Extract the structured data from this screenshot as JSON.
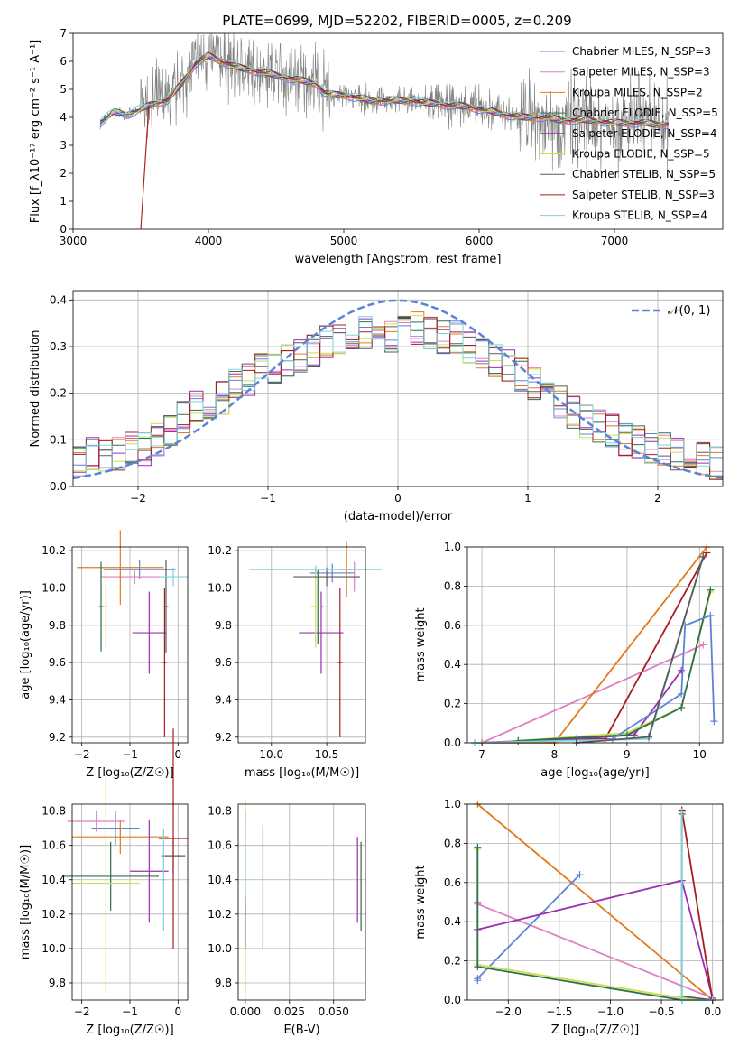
{
  "figure_title": "PLATE=0699, MJD=52202, FIBERID=0005, z=0.209",
  "colors": {
    "Chabrier MILES": "#5b84d8",
    "Salpeter MILES": "#e07fc2",
    "Kroupa MILES": "#e07b1d",
    "Chabrier ELODIE": "#2f6e4e",
    "Salpeter ELODIE": "#9b2db0",
    "Kroupa ELODIE": "#c9e04a",
    "Chabrier STELIB": "#5a5a5a",
    "Salpeter STELIB": "#a51d22",
    "Kroupa STELIB": "#7dd3da",
    "data": "#808080",
    "normal": "#5b84d8"
  },
  "chart_data": [
    {
      "id": "spectrum",
      "type": "line",
      "title": "PLATE=0699, MJD=52202, FIBERID=0005, z=0.209",
      "xlabel": "wavelength [Angstrom, rest frame]",
      "ylabel": "Flux [f_λ10⁻¹⁷ erg cm⁻² s⁻¹ A⁻¹]",
      "xlim": [
        3000,
        7800
      ],
      "ylim": [
        0,
        7
      ],
      "xticks": [
        "3000",
        "4000",
        "5000",
        "6000",
        "7000"
      ],
      "yticks": [
        "0",
        "1",
        "2",
        "3",
        "4",
        "5",
        "6",
        "7"
      ],
      "legend": "top-right",
      "series": [
        {
          "name": "Chabrier MILES, N_SSP=3"
        },
        {
          "name": "Salpeter MILES, N_SSP=3"
        },
        {
          "name": "Kroupa MILES, N_SSP=2"
        },
        {
          "name": "Chabrier ELODIE, N_SSP=5"
        },
        {
          "name": "Salpeter ELODIE, N_SSP=4"
        },
        {
          "name": "Kroupa ELODIE, N_SSP=5"
        },
        {
          "name": "Chabrier STELIB, N_SSP=5"
        },
        {
          "name": "Salpeter STELIB, N_SSP=3"
        },
        {
          "name": "Kroupa STELIB, N_SSP=4"
        }
      ],
      "model_x": [
        3200,
        3300,
        3400,
        3500,
        3600,
        3700,
        3800,
        3900,
        4000,
        4100,
        4200,
        4300,
        4400,
        4500,
        4600,
        4700,
        4800,
        4850,
        4900,
        5000,
        5100,
        5200,
        5300,
        5400,
        5500,
        5600,
        5700,
        5800,
        5900,
        6000,
        6100,
        6200,
        6300,
        6400,
        6500,
        6600,
        6700,
        6800,
        6900,
        7000,
        7100,
        7200,
        7300,
        7400
      ],
      "model_y": [
        3.8,
        4.2,
        4.1,
        4.3,
        4.5,
        4.6,
        5.2,
        5.9,
        6.2,
        6.0,
        5.8,
        5.7,
        5.6,
        5.5,
        5.4,
        5.3,
        5.2,
        4.9,
        4.8,
        4.8,
        4.7,
        4.6,
        4.6,
        4.6,
        4.6,
        4.5,
        4.5,
        4.4,
        4.4,
        4.3,
        4.2,
        4.1,
        4.0,
        4.0,
        4.0,
        3.9,
        3.9,
        3.9,
        3.85,
        3.8,
        3.8,
        3.8,
        3.75,
        3.75
      ],
      "data_range": [
        3200,
        7400
      ]
    },
    {
      "id": "residuals",
      "type": "bar",
      "xlabel": "(data-model)/error",
      "ylabel": "Normed distribution",
      "xlim": [
        -2.5,
        2.5
      ],
      "ylim": [
        0,
        0.42
      ],
      "xticks": [
        "−2",
        "−1",
        "0",
        "1",
        "2"
      ],
      "yticks": [
        "0.0",
        "0.1",
        "0.2",
        "0.3",
        "0.4"
      ],
      "legend": "top-right",
      "legend_label": "𝒩(0, 1)",
      "bin_centers": [
        -2.45,
        -2.35,
        -2.25,
        -2.15,
        -2.05,
        -1.95,
        -1.85,
        -1.75,
        -1.65,
        -1.55,
        -1.45,
        -1.35,
        -1.25,
        -1.15,
        -1.05,
        -0.95,
        -0.85,
        -0.75,
        -0.65,
        -0.55,
        -0.45,
        -0.35,
        -0.25,
        -0.15,
        -0.05,
        0.05,
        0.15,
        0.25,
        0.35,
        0.45,
        0.55,
        0.65,
        0.75,
        0.85,
        0.95,
        1.05,
        1.15,
        1.25,
        1.35,
        1.45,
        1.55,
        1.65,
        1.75,
        1.85,
        1.95,
        2.05,
        2.15,
        2.25,
        2.35,
        2.45
      ],
      "hist_values": [
        0.055,
        0.07,
        0.065,
        0.07,
        0.085,
        0.08,
        0.1,
        0.12,
        0.15,
        0.17,
        0.18,
        0.19,
        0.22,
        0.23,
        0.25,
        0.25,
        0.27,
        0.28,
        0.29,
        0.31,
        0.32,
        0.33,
        0.33,
        0.33,
        0.32,
        0.33,
        0.34,
        0.33,
        0.32,
        0.32,
        0.3,
        0.28,
        0.27,
        0.26,
        0.24,
        0.22,
        0.2,
        0.18,
        0.16,
        0.14,
        0.13,
        0.12,
        0.1,
        0.095,
        0.085,
        0.08,
        0.07,
        0.065,
        0.06,
        0.05
      ],
      "normal": {
        "mean": 0,
        "sigma": 1
      }
    },
    {
      "id": "age-vs-Z",
      "type": "scatter",
      "xlabel": "Z [log₁₀(Z/Z☉)]",
      "ylabel": "age  [log₁₀(age/yr)]",
      "xlim": [
        -2.2,
        0.2
      ],
      "ylim": [
        9.17,
        10.22
      ],
      "xticks": [
        "−2",
        "−1",
        "0"
      ],
      "yticks": [
        "9.2",
        "9.4",
        "9.6",
        "9.8",
        "10.0",
        "10.2"
      ],
      "points": [
        {
          "s": "Chabrier MILES",
          "x": -0.8,
          "xerr": 0.75,
          "y": 10.1,
          "yerr": 0.05
        },
        {
          "s": "Salpeter MILES",
          "x": -0.9,
          "xerr": 0.7,
          "y": 10.06,
          "yerr": 0.04
        },
        {
          "s": "Kroupa MILES",
          "x": -1.2,
          "xerr": 0.9,
          "y": 10.11,
          "yerr": 0.2
        },
        {
          "s": "Chabrier ELODIE",
          "x": -1.6,
          "xerr": 0.05,
          "y": 9.9,
          "yerr": 0.24
        },
        {
          "s": "Salpeter ELODIE",
          "x": -0.6,
          "xerr": 0.35,
          "y": 9.76,
          "yerr": 0.22
        },
        {
          "s": "Kroupa ELODIE",
          "x": -1.5,
          "xerr": 0.05,
          "y": 9.9,
          "yerr": 0.22
        },
        {
          "s": "Chabrier STELIB",
          "x": -0.25,
          "xerr": 0.05,
          "y": 9.9,
          "yerr": 0.25
        },
        {
          "s": "Salpeter STELIB",
          "x": -0.28,
          "xerr": 0.04,
          "y": 9.6,
          "yerr": 0.4
        },
        {
          "s": "Kroupa STELIB",
          "x": -0.1,
          "xerr": 0.3,
          "y": 10.06,
          "yerr": 0.05
        }
      ]
    },
    {
      "id": "age-vs-mass",
      "type": "scatter",
      "xlabel": "mass [log₁₀(M/M☉)]",
      "ylabel": "",
      "xlim": [
        9.7,
        10.85
      ],
      "ylim": [
        9.17,
        10.22
      ],
      "xticks": [
        "10.0",
        "10.5"
      ],
      "yticks": [
        "9.2",
        "9.4",
        "9.6",
        "9.8",
        "10.0",
        "10.2"
      ],
      "points": [
        {
          "s": "Chabrier MILES",
          "x": 10.55,
          "xerr": 0.2,
          "y": 10.08,
          "yerr": 0.05
        },
        {
          "s": "Salpeter MILES",
          "x": 10.75,
          "xerr": 0.05,
          "y": 10.06,
          "yerr": 0.08
        },
        {
          "s": "Kroupa MILES",
          "x": 10.68,
          "xerr": 0.05,
          "y": 10.1,
          "yerr": 0.15
        },
        {
          "s": "Chabrier ELODIE",
          "x": 10.42,
          "xerr": 0.05,
          "y": 9.9,
          "yerr": 0.2
        },
        {
          "s": "Salpeter ELODIE",
          "x": 10.45,
          "xerr": 0.2,
          "y": 9.76,
          "yerr": 0.22
        },
        {
          "s": "Kroupa ELODIE",
          "x": 10.4,
          "xerr": 0.05,
          "y": 9.9,
          "yerr": 0.22
        },
        {
          "s": "Chabrier STELIB",
          "x": 10.5,
          "xerr": 0.3,
          "y": 10.06,
          "yerr": 0.05
        },
        {
          "s": "Salpeter STELIB",
          "x": 10.62,
          "xerr": 0.02,
          "y": 9.6,
          "yerr": 0.4
        },
        {
          "s": "Kroupa STELIB",
          "x": 10.4,
          "xerr": 0.6,
          "y": 10.1,
          "yerr": 0.02
        }
      ]
    },
    {
      "id": "weight-vs-age",
      "type": "line",
      "xlabel": "age  [log₁₀(age/yr)]",
      "ylabel": "mass weight",
      "xlim": [
        6.8,
        10.32
      ],
      "ylim": [
        0,
        1
      ],
      "xticks": [
        "7",
        "8",
        "9",
        "10"
      ],
      "yticks": [
        "0.0",
        "0.2",
        "0.4",
        "0.6",
        "0.8",
        "1.0"
      ],
      "series": [
        {
          "s": "Salpeter MILES",
          "x": [
            7.0,
            10.05
          ],
          "y": [
            0.0,
            0.5
          ]
        },
        {
          "s": "Kroupa MILES",
          "x": [
            7.0,
            8.0,
            10.1
          ],
          "y": [
            0.0,
            0.0,
            1.0
          ]
        },
        {
          "s": "Salpeter STELIB",
          "x": [
            7.5,
            8.7,
            10.1
          ],
          "y": [
            0.01,
            0.02,
            0.97
          ]
        },
        {
          "s": "Salpeter ELODIE",
          "x": [
            6.9,
            8.3,
            9.1,
            9.75
          ],
          "y": [
            0.0,
            0.02,
            0.04,
            0.37
          ]
        },
        {
          "s": "Kroupa ELODIE",
          "x": [
            7.5,
            9.0,
            9.75,
            10.15
          ],
          "y": [
            0.01,
            0.05,
            0.18,
            0.77
          ]
        },
        {
          "s": "Chabrier ELODIE",
          "x": [
            7.5,
            9.0,
            9.75,
            10.15
          ],
          "y": [
            0.01,
            0.04,
            0.18,
            0.78
          ]
        },
        {
          "s": "Chabrier MILES",
          "x": [
            8.8,
            9.75,
            9.8,
            10.15,
            10.2
          ],
          "y": [
            0.02,
            0.25,
            0.6,
            0.65,
            0.11
          ]
        },
        {
          "s": "Kroupa STELIB",
          "x": [
            6.9,
            9.3,
            10.05
          ],
          "y": [
            0.0,
            0.02,
            0.95
          ]
        },
        {
          "s": "Chabrier STELIB",
          "x": [
            8.3,
            9.3,
            10.05
          ],
          "y": [
            0.0,
            0.03,
            0.95
          ]
        }
      ]
    },
    {
      "id": "mass-vs-Z",
      "type": "scatter",
      "xlabel": "Z [log₁₀(Z/Z☉)]",
      "ylabel": "mass [log₁₀(M/M☉)]",
      "xlim": [
        -2.2,
        0.2
      ],
      "ylim": [
        9.7,
        10.84
      ],
      "xticks": [
        "−2",
        "−1",
        "0"
      ],
      "yticks": [
        "9.8",
        "10.0",
        "10.2",
        "10.4",
        "10.6",
        "10.8"
      ],
      "points": [
        {
          "s": "Chabrier MILES",
          "x": -1.3,
          "xerr": 0.5,
          "y": 10.7,
          "yerr": 0.1
        },
        {
          "s": "Salpeter MILES",
          "x": -1.7,
          "xerr": 0.6,
          "y": 10.74,
          "yerr": 0.06
        },
        {
          "s": "Kroupa MILES",
          "x": -1.2,
          "xerr": 1.0,
          "y": 10.65,
          "yerr": 0.1
        },
        {
          "s": "Chabrier ELODIE",
          "x": -1.4,
          "xerr": 1.0,
          "y": 10.42,
          "yerr": 0.2
        },
        {
          "s": "Salpeter ELODIE",
          "x": -0.6,
          "xerr": 0.4,
          "y": 10.45,
          "yerr": 0.3
        },
        {
          "s": "Kroupa ELODIE",
          "x": -1.5,
          "xerr": 0.7,
          "y": 10.38,
          "yerr": 0.64
        },
        {
          "s": "Chabrier STELIB",
          "x": -0.1,
          "xerr": 0.25,
          "y": 10.54,
          "yerr": 0.1
        },
        {
          "s": "Salpeter STELIB",
          "x": -0.1,
          "xerr": 0.3,
          "y": 10.64,
          "yerr": 0.64
        },
        {
          "s": "Kroupa STELIB",
          "x": -0.3,
          "xerr": 0.05,
          "y": 10.4,
          "yerr": 0.3
        }
      ]
    },
    {
      "id": "mass-vs-ebv",
      "type": "scatter",
      "xlabel": "E(B-V)",
      "ylabel": "",
      "xlim": [
        -0.004,
        0.068
      ],
      "ylim": [
        9.7,
        10.84
      ],
      "xticks": [
        "0.000",
        "0.025",
        "0.050"
      ],
      "yticks": [
        "9.8",
        "10.0",
        "10.2",
        "10.4",
        "10.6",
        "10.8"
      ],
      "points": [
        {
          "s": "Kroupa ELODIE",
          "x": 0.0,
          "xerr": 0,
          "y": 10.3,
          "yerr": 0.56
        },
        {
          "s": "Salpeter MILES",
          "x": 0.0,
          "xerr": 0,
          "y": 10.5,
          "yerr": 0.3
        },
        {
          "s": "Chabrier STELIB",
          "x": 0.0,
          "xerr": 0,
          "y": 10.3,
          "yerr": 0.3
        },
        {
          "s": "Kroupa STELIB",
          "x": 0.0,
          "xerr": 0,
          "y": 10.5,
          "yerr": 0.2
        },
        {
          "s": "Salpeter STELIB",
          "x": 0.01,
          "xerr": 0,
          "y": 10.36,
          "yerr": 0.36
        },
        {
          "s": "Salpeter ELODIE",
          "x": 0.0635,
          "xerr": 0,
          "y": 10.4,
          "yerr": 0.25
        },
        {
          "s": "Chabrier ELODIE",
          "x": 0.0655,
          "xerr": 0,
          "y": 10.36,
          "yerr": 0.26
        }
      ]
    },
    {
      "id": "weight-vs-Z",
      "type": "line",
      "xlabel": "Z [log₁₀(Z/Z☉)]",
      "ylabel": "mass weight",
      "xlim": [
        -2.4,
        0.1
      ],
      "ylim": [
        0,
        1
      ],
      "xticks": [
        "−2.0",
        "−1.5",
        "−1.0",
        "−0.5",
        "0.0"
      ],
      "yticks": [
        "0.0",
        "0.2",
        "0.4",
        "0.6",
        "0.8",
        "1.0"
      ],
      "series": [
        {
          "s": "Kroupa MILES",
          "x": [
            -2.3,
            0.0
          ],
          "y": [
            1.0,
            0.0
          ]
        },
        {
          "s": "Salpeter MILES",
          "x": [
            -2.3,
            -2.3,
            0.0
          ],
          "y": [
            0.5,
            0.49,
            0.01
          ]
        },
        {
          "s": "Chabrier MILES",
          "x": [
            -2.3,
            -2.3,
            -1.3
          ],
          "y": [
            0.1,
            0.11,
            0.64
          ]
        },
        {
          "s": "Salpeter ELODIE",
          "x": [
            -2.3,
            -0.3,
            0.0
          ],
          "y": [
            0.36,
            0.61,
            0.01
          ]
        },
        {
          "s": "Kroupa ELODIE",
          "x": [
            -2.3,
            -2.3,
            -0.3,
            0.0
          ],
          "y": [
            0.77,
            0.18,
            0.01,
            0.0
          ]
        },
        {
          "s": "Chabrier ELODIE",
          "x": [
            -2.3,
            -2.3,
            -0.3,
            0.0
          ],
          "y": [
            0.78,
            0.17,
            0.0,
            0.0
          ]
        },
        {
          "s": "Salpeter STELIB",
          "x": [
            -0.3,
            0.0
          ],
          "y": [
            0.97,
            0.0
          ]
        },
        {
          "s": "Chabrier STELIB",
          "x": [
            -0.3,
            -0.3,
            0.0
          ],
          "y": [
            0.95,
            0.02,
            0.0
          ]
        },
        {
          "s": "Kroupa STELIB",
          "x": [
            -0.3,
            -0.3,
            0.0
          ],
          "y": [
            0.96,
            0.0,
            0.0
          ]
        }
      ]
    }
  ]
}
